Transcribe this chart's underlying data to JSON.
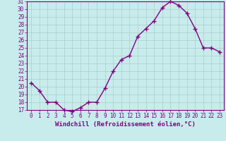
{
  "hours": [
    0,
    1,
    2,
    3,
    4,
    5,
    6,
    7,
    8,
    9,
    10,
    11,
    12,
    13,
    14,
    15,
    16,
    17,
    18,
    19,
    20,
    21,
    22,
    23
  ],
  "values": [
    20.5,
    19.5,
    18.0,
    18.0,
    17.0,
    16.8,
    17.3,
    18.0,
    18.0,
    19.8,
    22.0,
    23.5,
    24.0,
    26.5,
    27.5,
    28.5,
    30.2,
    31.0,
    30.5,
    29.5,
    27.5,
    25.0,
    25.0,
    24.5
  ],
  "line_color": "#800080",
  "marker": "+",
  "marker_size": 4,
  "background_color": "#c8ecec",
  "grid_color": "#aacccc",
  "xlabel": "Windchill (Refroidissement éolien,°C)",
  "ylim": [
    17,
    31
  ],
  "xlim": [
    0,
    23
  ],
  "yticks": [
    17,
    18,
    19,
    20,
    21,
    22,
    23,
    24,
    25,
    26,
    27,
    28,
    29,
    30,
    31
  ],
  "xticks": [
    0,
    1,
    2,
    3,
    4,
    5,
    6,
    7,
    8,
    9,
    10,
    11,
    12,
    13,
    14,
    15,
    16,
    17,
    18,
    19,
    20,
    21,
    22,
    23
  ],
  "tick_color": "#800080",
  "label_color": "#800080",
  "xlabel_fontsize": 6.5,
  "ytick_fontsize": 5.5,
  "xtick_fontsize": 5.5,
  "linewidth": 1.0,
  "markeredgewidth": 1.0
}
